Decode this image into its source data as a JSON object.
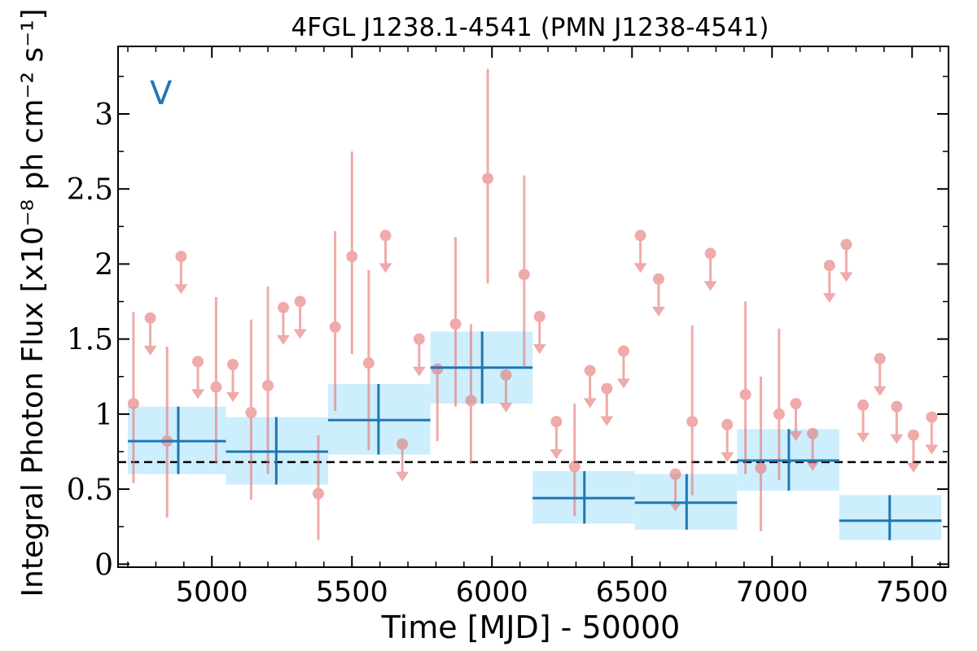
{
  "chart_data": {
    "type": "scatter",
    "title": "4FGL J1238.1-4541 (PMN J1238-4541)",
    "xlabel": "Time [MJD] - 50000",
    "ylabel": "Integral Photon Flux [x10⁻⁸ ph cm⁻² s⁻¹]",
    "variability_label": "V",
    "xlim": [
      4665,
      7630
    ],
    "ylim": [
      -0.02,
      3.45
    ],
    "xticks": [
      5000,
      5500,
      6000,
      6500,
      7000,
      7500
    ],
    "xtick_labels": [
      "5000",
      "5500",
      "6000",
      "6500",
      "7000",
      "7500"
    ],
    "yticks": [
      0,
      0.5,
      1,
      1.5,
      2,
      2.5,
      3
    ],
    "ytick_labels": [
      "0",
      "0.5",
      "1",
      "1.5",
      "2",
      "2.5",
      "3"
    ],
    "reference_line": 0.68,
    "colors": {
      "monthly": "#e57373",
      "binned_line": "#1f77b4",
      "binned_band": "#cdeefc",
      "reference": "#000000",
      "label": "#1f77b4"
    },
    "binned": [
      {
        "x0": 4700,
        "x1": 5050,
        "xc": 4880,
        "y": 0.82,
        "ylo": 0.6,
        "yhi": 1.05,
        "band_lo": 0.6,
        "band_hi": 1.05
      },
      {
        "x0": 5050,
        "x1": 5415,
        "xc": 5230,
        "y": 0.75,
        "ylo": 0.53,
        "yhi": 0.98,
        "band_lo": 0.53,
        "band_hi": 0.98
      },
      {
        "x0": 5415,
        "x1": 5780,
        "xc": 5595,
        "y": 0.96,
        "ylo": 0.73,
        "yhi": 1.2,
        "band_lo": 0.73,
        "band_hi": 1.2
      },
      {
        "x0": 5780,
        "x1": 6145,
        "xc": 5965,
        "y": 1.31,
        "ylo": 1.07,
        "yhi": 1.55,
        "band_lo": 1.07,
        "band_hi": 1.55
      },
      {
        "x0": 6145,
        "x1": 6510,
        "xc": 6330,
        "y": 0.44,
        "ylo": 0.27,
        "yhi": 0.62,
        "band_lo": 0.27,
        "band_hi": 0.62
      },
      {
        "x0": 6510,
        "x1": 6875,
        "xc": 6695,
        "y": 0.41,
        "ylo": 0.23,
        "yhi": 0.6,
        "band_lo": 0.23,
        "band_hi": 0.6
      },
      {
        "x0": 6875,
        "x1": 7240,
        "xc": 7060,
        "y": 0.69,
        "ylo": 0.49,
        "yhi": 0.9,
        "band_lo": 0.49,
        "band_hi": 0.9
      },
      {
        "x0": 7240,
        "x1": 7605,
        "xc": 7420,
        "y": 0.29,
        "ylo": 0.16,
        "yhi": 0.46,
        "band_lo": 0.16,
        "band_hi": 0.46
      }
    ],
    "detections": [
      {
        "x": 4720,
        "y": 1.07,
        "ylo": 0.54,
        "yhi": 1.68
      },
      {
        "x": 4840,
        "y": 0.82,
        "ylo": 0.31,
        "yhi": 1.45
      },
      {
        "x": 5015,
        "y": 1.18,
        "ylo": 0.67,
        "yhi": 1.78
      },
      {
        "x": 5140,
        "y": 1.01,
        "ylo": 0.43,
        "yhi": 1.63
      },
      {
        "x": 5200,
        "y": 1.19,
        "ylo": 0.6,
        "yhi": 1.85
      },
      {
        "x": 5380,
        "y": 0.47,
        "ylo": 0.16,
        "yhi": 0.86
      },
      {
        "x": 5440,
        "y": 1.58,
        "ylo": 1.02,
        "yhi": 2.22
      },
      {
        "x": 5500,
        "y": 2.05,
        "ylo": 1.4,
        "yhi": 2.75
      },
      {
        "x": 5560,
        "y": 1.34,
        "ylo": 0.76,
        "yhi": 1.96
      },
      {
        "x": 5805,
        "y": 1.3,
        "ylo": 0.82,
        "yhi": 1.3
      },
      {
        "x": 5870,
        "y": 1.6,
        "ylo": 1.05,
        "yhi": 2.18
      },
      {
        "x": 5925,
        "y": 1.09,
        "ylo": 0.67,
        "yhi": 1.6
      },
      {
        "x": 5985,
        "y": 2.57,
        "ylo": 1.87,
        "yhi": 3.3
      },
      {
        "x": 6115,
        "y": 1.93,
        "ylo": 1.32,
        "yhi": 2.59
      },
      {
        "x": 6295,
        "y": 0.65,
        "ylo": 0.32,
        "yhi": 1.07
      },
      {
        "x": 6715,
        "y": 0.95,
        "ylo": 0.46,
        "yhi": 1.59
      },
      {
        "x": 6905,
        "y": 1.13,
        "ylo": 0.6,
        "yhi": 1.75
      },
      {
        "x": 6960,
        "y": 0.64,
        "ylo": 0.22,
        "yhi": 1.25
      },
      {
        "x": 7025,
        "y": 1.0,
        "ylo": 0.56,
        "yhi": 1.57
      }
    ],
    "upper_limits": [
      {
        "x": 4780,
        "y": 1.64
      },
      {
        "x": 4890,
        "y": 2.05
      },
      {
        "x": 4950,
        "y": 1.35
      },
      {
        "x": 5075,
        "y": 1.33
      },
      {
        "x": 5255,
        "y": 1.71
      },
      {
        "x": 5315,
        "y": 1.75
      },
      {
        "x": 5620,
        "y": 2.19
      },
      {
        "x": 5680,
        "y": 0.8
      },
      {
        "x": 5740,
        "y": 1.5
      },
      {
        "x": 6050,
        "y": 1.26
      },
      {
        "x": 6170,
        "y": 1.65
      },
      {
        "x": 6230,
        "y": 0.95
      },
      {
        "x": 6350,
        "y": 1.29
      },
      {
        "x": 6410,
        "y": 1.17
      },
      {
        "x": 6470,
        "y": 1.42
      },
      {
        "x": 6530,
        "y": 2.19
      },
      {
        "x": 6595,
        "y": 1.9
      },
      {
        "x": 6655,
        "y": 0.6
      },
      {
        "x": 6780,
        "y": 2.07
      },
      {
        "x": 6840,
        "y": 0.93
      },
      {
        "x": 7085,
        "y": 1.07
      },
      {
        "x": 7145,
        "y": 0.87
      },
      {
        "x": 7205,
        "y": 1.99
      },
      {
        "x": 7265,
        "y": 2.13
      },
      {
        "x": 7325,
        "y": 1.06
      },
      {
        "x": 7385,
        "y": 1.37
      },
      {
        "x": 7445,
        "y": 1.05
      },
      {
        "x": 7505,
        "y": 0.86
      },
      {
        "x": 7570,
        "y": 0.98
      }
    ]
  }
}
